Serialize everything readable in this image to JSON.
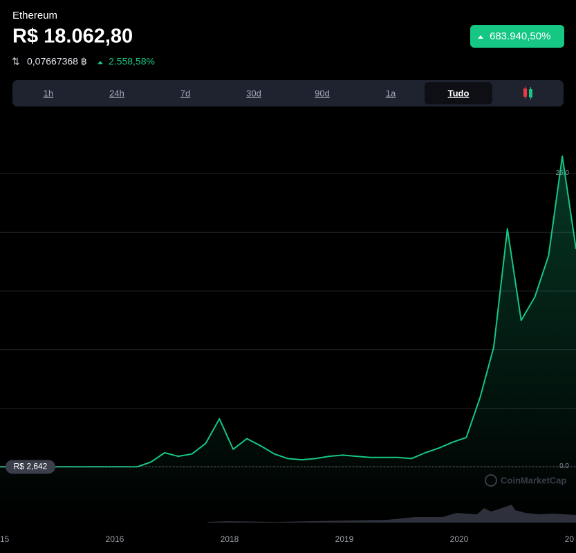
{
  "header": {
    "name": "Ethereum",
    "price": "R$ 18.062,80",
    "change_badge": "683.940,50%",
    "btc_price": "0,07667368 ฿",
    "btc_change": "2.558,58%"
  },
  "tabs": [
    "1h",
    "24h",
    "7d",
    "30d",
    "90d",
    "1a",
    "Tudo"
  ],
  "active_tab": 6,
  "chart_data": {
    "type": "line",
    "series": [
      {
        "color": "#16c784",
        "values": [
          0,
          0,
          0,
          0,
          0,
          0,
          0,
          0,
          0,
          0,
          0,
          0.4,
          1.2,
          0.9,
          1.1,
          2.0,
          4.1,
          1.5,
          2.4,
          1.8,
          1.1,
          0.7,
          0.6,
          0.7,
          0.9,
          1.0,
          0.9,
          0.8,
          0.8,
          0.8,
          0.7,
          1.2,
          1.6,
          2.1,
          2.5,
          5.9,
          10.2,
          20.3,
          12.5,
          14.5,
          18.0,
          26.5,
          18.6
        ]
      }
    ],
    "ylim": [
      -4.7,
      30.1
    ],
    "yticks": [
      {
        "value": 0,
        "label": "0.0"
      },
      {
        "value": 5,
        "label": null
      },
      {
        "value": 10,
        "label": null
      },
      {
        "value": 15,
        "label": null
      },
      {
        "value": 20,
        "label": null
      },
      {
        "value": 25,
        "label": "25.0"
      }
    ],
    "xtick_labels": [
      "15",
      "2016",
      "2018",
      "2019",
      "2020",
      "20"
    ],
    "grid": true,
    "start_label": "R$ 2,642",
    "watermark": "CoinMarketCap"
  }
}
